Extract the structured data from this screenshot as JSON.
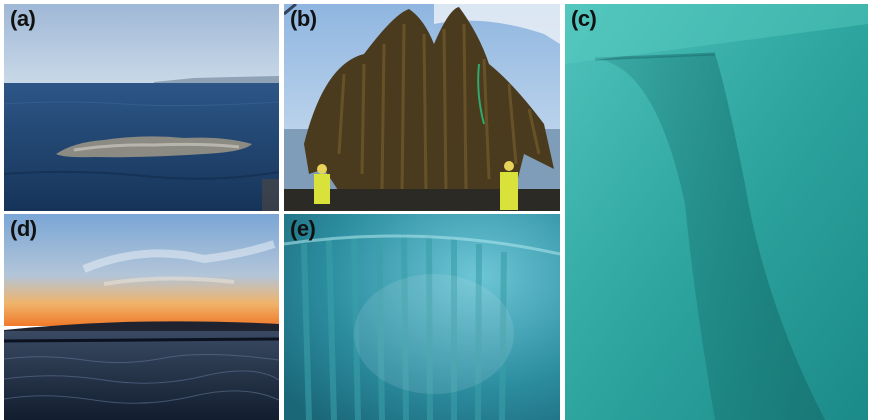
{
  "figure": {
    "panels": [
      {
        "id": "a",
        "label": "(a)",
        "scene": "rocky islet in calm sea under clear sky"
      },
      {
        "id": "b",
        "label": "(b)",
        "scene": "mussel-covered rope structure lifted on boat deck, two workers in high-visibility gear"
      },
      {
        "id": "c",
        "label": "(c)",
        "scene": "underwater view of culture net in turquoise water"
      },
      {
        "id": "d",
        "label": "(d)",
        "scene": "sunset over sea with dark shoreline and floating lines"
      },
      {
        "id": "e",
        "label": "(e)",
        "scene": "underwater view of vertical ropes curtain in blue-green water"
      }
    ]
  },
  "colors": {
    "sky_a": "#aac3dc",
    "sea_a": "#1e3f66",
    "sea_c": "#2fa9a3",
    "sunset": "#f08a3a",
    "sea_d": "#1a2b40",
    "sea_e": "#2a8fa0"
  }
}
